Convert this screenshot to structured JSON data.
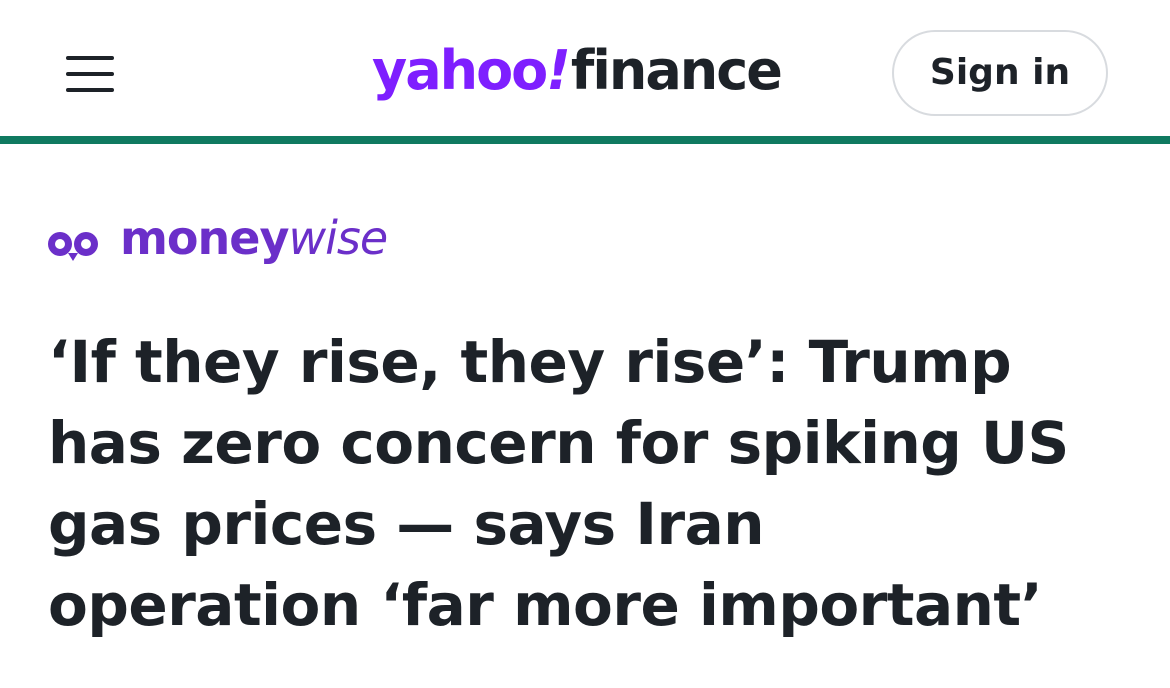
{
  "header": {
    "menu_icon": "hamburger-menu-icon",
    "logo": {
      "yahoo": "yahoo",
      "bang": "!",
      "finance": "finance"
    },
    "sign_in_label": "Sign in"
  },
  "article": {
    "publisher": {
      "icon": "moneywise-logo-icon",
      "name_part1": "money",
      "name_part2": "wise"
    },
    "headline_lines": [
      "‘If they rise, they rise’: Trump",
      "has zero concern for spiking US",
      "gas prices — says Iran",
      "operation ‘far more important’"
    ]
  },
  "colors": {
    "yahoo_purple": "#7e1fff",
    "finance_text": "#1d2228",
    "header_rule": "#0f7a60",
    "moneywise_purple": "#6b2fc9",
    "text": "#1d2228",
    "button_border": "#d8dbdf"
  }
}
